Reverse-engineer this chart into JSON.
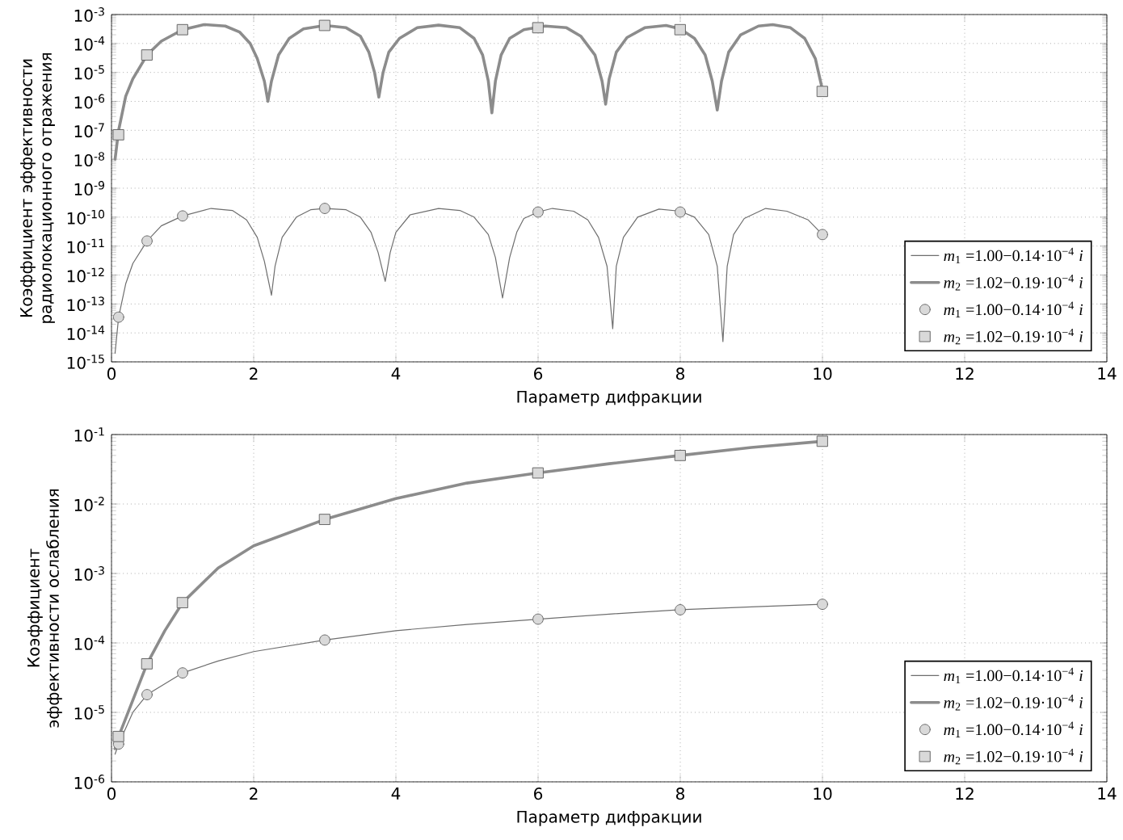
{
  "chart_data": [
    {
      "type": "line",
      "xlabel": "Параметр дифракции",
      "ylabel": "Коэффициент эффективности радиолокационного отражения",
      "log": "y",
      "grid": true,
      "legend": "bottom right",
      "xlim": [
        0,
        14
      ],
      "xticks": [
        0,
        2,
        4,
        6,
        8,
        10,
        12,
        14
      ],
      "ylim": [
        1e-15,
        0.001
      ],
      "yticks": [
        {
          "value": 1e-15,
          "label": "10$^{-15}$"
        },
        {
          "value": 1e-14,
          "label": "10$^{-14}$"
        },
        {
          "value": 1e-13,
          "label": "10$^{-13}$"
        },
        {
          "value": 1e-12,
          "label": "10$^{-12}$"
        },
        {
          "value": 1e-11,
          "label": "10$^{-11}$"
        },
        {
          "value": 1e-10,
          "label": "10$^{-10}$"
        },
        {
          "value": 1e-09,
          "label": "10$^{-9}$"
        },
        {
          "value": 1e-08,
          "label": "10$^{-8}$"
        },
        {
          "value": 1e-07,
          "label": "10$^{-7}$"
        },
        {
          "value": 1e-06,
          "label": "10$^{-6}$"
        },
        {
          "value": 1e-05,
          "label": "10$^{-5}$"
        },
        {
          "value": 0.0001,
          "label": "10$^{-4}$"
        },
        {
          "value": 0.001,
          "label": "10$^{-3}$"
        }
      ],
      "series": [
        {
          "type": "line",
          "name": "*m*$_{1}$ =1.00−0.14·10$^{−4}$ *i*",
          "color": "#6e6e6e",
          "line_style": "solid",
          "marker": "none",
          "x": [
            0.05,
            0.1,
            0.2,
            0.3,
            0.5,
            0.7,
            1.0,
            1.4,
            1.7,
            1.9,
            2.05,
            2.15,
            2.25,
            2.3,
            2.4,
            2.6,
            2.8,
            3.0,
            3.3,
            3.5,
            3.65,
            3.75,
            3.85,
            3.92,
            4.0,
            4.2,
            4.6,
            4.9,
            5.1,
            5.3,
            5.4,
            5.5,
            5.6,
            5.7,
            5.8,
            6.0,
            6.2,
            6.5,
            6.7,
            6.85,
            6.97,
            7.05,
            7.1,
            7.2,
            7.4,
            7.7,
            8.0,
            8.2,
            8.4,
            8.52,
            8.6,
            8.66,
            8.75,
            8.9,
            9.2,
            9.5,
            9.8,
            10.0
          ],
          "values": [
            2e-15,
            3.5e-14,
            5e-13,
            2.5e-12,
            1.5e-11,
            5e-11,
            1.1e-10,
            2e-10,
            1.7e-10,
            8e-11,
            2e-11,
            3e-12,
            2e-13,
            2e-12,
            2e-11,
            1e-10,
            1.8e-10,
            2e-10,
            1.8e-10,
            1e-10,
            3e-11,
            6e-12,
            6e-13,
            6e-12,
            3e-11,
            1.2e-10,
            2e-10,
            1.7e-10,
            1e-10,
            2.5e-11,
            4e-12,
            1.6e-13,
            4e-12,
            3e-11,
            9e-11,
            1.5e-10,
            2e-10,
            1.6e-10,
            8e-11,
            2e-11,
            2e-12,
            1.4e-14,
            2e-12,
            2e-11,
            1e-10,
            1.9e-10,
            1.6e-10,
            1e-10,
            2.5e-11,
            2e-12,
            5e-15,
            2e-12,
            2.5e-11,
            9e-11,
            2e-10,
            1.6e-10,
            8e-11,
            2.5e-11
          ]
        },
        {
          "type": "line",
          "name": "*m*$_{2}$ =1.02−0.19·10$^{−4}$ *i*",
          "color": "#8c8c8c",
          "line_style": "solid",
          "marker": "none",
          "x": [
            0.05,
            0.1,
            0.2,
            0.3,
            0.5,
            0.7,
            1.0,
            1.3,
            1.6,
            1.8,
            1.95,
            2.05,
            2.15,
            2.2,
            2.25,
            2.35,
            2.5,
            2.7,
            3.0,
            3.3,
            3.5,
            3.62,
            3.7,
            3.76,
            3.82,
            3.9,
            4.05,
            4.3,
            4.6,
            4.9,
            5.1,
            5.22,
            5.3,
            5.35,
            5.4,
            5.48,
            5.6,
            5.8,
            6.1,
            6.4,
            6.6,
            6.8,
            6.9,
            6.95,
            7.0,
            7.1,
            7.25,
            7.5,
            7.8,
            8.0,
            8.2,
            8.35,
            8.45,
            8.52,
            8.58,
            8.68,
            8.85,
            9.1,
            9.3,
            9.55,
            9.75,
            9.9,
            10.0
          ],
          "values": [
            1e-08,
            1e-07,
            1.5e-06,
            6e-06,
            4e-05,
            0.00012,
            0.0003,
            0.00045,
            0.0004,
            0.00025,
            0.0001,
            3e-05,
            5e-06,
            1e-06,
            5e-06,
            4e-05,
            0.00015,
            0.00032,
            0.00042,
            0.00035,
            0.00018,
            5e-05,
            1e-05,
            1.4e-06,
            1e-05,
            5e-05,
            0.00015,
            0.00035,
            0.00043,
            0.00035,
            0.00015,
            4e-05,
            5e-06,
            4e-07,
            5e-06,
            4e-05,
            0.00015,
            0.0003,
            0.0004,
            0.00035,
            0.00018,
            4e-05,
            5e-06,
            8e-07,
            6e-06,
            5e-05,
            0.00016,
            0.00035,
            0.00042,
            0.00032,
            0.00015,
            4e-05,
            5e-06,
            5e-07,
            5e-06,
            5e-05,
            0.0002,
            0.0004,
            0.00045,
            0.00035,
            0.00015,
            3e-05,
            2.5e-06
          ]
        },
        {
          "type": "scatter",
          "name": "*m*$_{1}$ =1.00−0.14·10$^{−4}$ *i*",
          "color": "#d9d9d9",
          "marker": "circle",
          "x": [
            0.1,
            0.5,
            1,
            3,
            6,
            8,
            10
          ],
          "values": [
            3.5e-14,
            1.5e-11,
            1.1e-10,
            2e-10,
            1.5e-10,
            1.5e-10,
            2.5e-11
          ]
        },
        {
          "type": "scatter",
          "name": "*m*$_{2}$ =1.02−0.19·10$^{−4}$ *i*",
          "color": "#d9d9d9",
          "marker": "square",
          "x": [
            0.1,
            0.5,
            1,
            3,
            6,
            8,
            10
          ],
          "values": [
            7e-08,
            4e-05,
            0.0003,
            0.00042,
            0.00035,
            0.0003,
            2.2e-06
          ]
        }
      ]
    },
    {
      "type": "line",
      "xlabel": "Параметр дифракции",
      "ylabel": "Коэффициент эффективности ослабления",
      "log": "y",
      "grid": true,
      "legend": "bottom right",
      "xlim": [
        0,
        14
      ],
      "xticks": [
        0,
        2,
        4,
        6,
        8,
        10,
        12,
        14
      ],
      "ylim": [
        1e-06,
        0.1
      ],
      "yticks": [
        {
          "value": 1e-06,
          "label": "10$^{-6}$"
        },
        {
          "value": 1e-05,
          "label": "10$^{-5}$"
        },
        {
          "value": 0.0001,
          "label": "10$^{-4}$"
        },
        {
          "value": 0.001,
          "label": "10$^{-3}$"
        },
        {
          "value": 0.01,
          "label": "10$^{-2}$"
        },
        {
          "value": 0.1,
          "label": "10$^{-1}$"
        }
      ],
      "series": [
        {
          "type": "line",
          "name": "*m*$_{1}$ =1.00−0.14·10$^{−4}$ *i*",
          "color": "#6e6e6e",
          "line_style": "solid",
          "marker": "none",
          "x": [
            0.05,
            0.1,
            0.3,
            0.5,
            1,
            1.5,
            2,
            3,
            4,
            5,
            6,
            7,
            8,
            9,
            10
          ],
          "values": [
            2.5e-06,
            3.5e-06,
            1e-05,
            1.8e-05,
            3.7e-05,
            5.5e-05,
            7.5e-05,
            0.00011,
            0.00015,
            0.000185,
            0.00022,
            0.00026,
            0.0003,
            0.00033,
            0.00036
          ]
        },
        {
          "type": "line",
          "name": "*m*$_{2}$ =1.02−0.19·10$^{−4}$ *i*",
          "color": "#8c8c8c",
          "line_style": "solid",
          "marker": "none",
          "x": [
            0.05,
            0.1,
            0.3,
            0.5,
            0.75,
            1,
            1.5,
            2,
            3,
            4,
            5,
            6,
            7,
            8,
            9,
            10
          ],
          "values": [
            3e-06,
            4.5e-06,
            1.5e-05,
            5e-05,
            0.00015,
            0.00038,
            0.0012,
            0.0025,
            0.006,
            0.012,
            0.02,
            0.028,
            0.038,
            0.05,
            0.065,
            0.08
          ]
        },
        {
          "type": "scatter",
          "name": "*m*$_{1}$ =1.00−0.14·10$^{−4}$ *i*",
          "color": "#d9d9d9",
          "marker": "circle",
          "x": [
            0.1,
            0.5,
            1,
            3,
            6,
            8,
            10
          ],
          "values": [
            3.5e-06,
            1.8e-05,
            3.7e-05,
            0.00011,
            0.00022,
            0.0003,
            0.00036
          ]
        },
        {
          "type": "scatter",
          "name": "*m*$_{2}$ =1.02−0.19·10$^{−4}$ *i*",
          "color": "#d9d9d9",
          "marker": "square",
          "x": [
            0.1,
            0.5,
            1,
            3,
            6,
            8,
            10
          ],
          "values": [
            4.5e-06,
            5e-05,
            0.00038,
            0.006,
            0.028,
            0.05,
            0.08
          ]
        }
      ]
    }
  ]
}
